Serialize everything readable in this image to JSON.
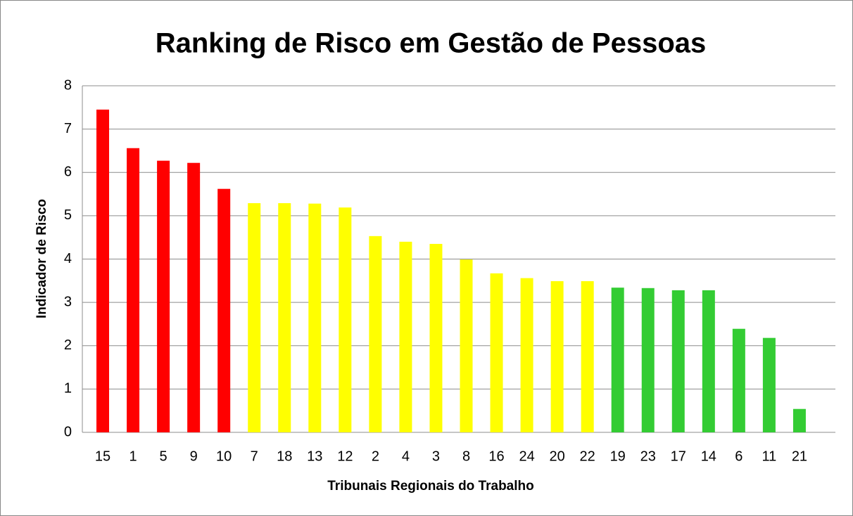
{
  "chart_data": {
    "type": "bar",
    "title": "Ranking de Risco em Gestão de Pessoas",
    "x_label": "Tribunais Regionais do Trabalho",
    "y_label": "Indicador de Risco",
    "categories": [
      "15",
      "1",
      "5",
      "9",
      "10",
      "7",
      "18",
      "13",
      "12",
      "2",
      "4",
      "3",
      "8",
      "16",
      "24",
      "20",
      "22",
      "19",
      "23",
      "17",
      "14",
      "6",
      "11",
      "21"
    ],
    "values": [
      7.45,
      6.56,
      6.27,
      6.22,
      5.62,
      5.29,
      5.29,
      5.28,
      5.19,
      4.53,
      4.4,
      4.35,
      3.99,
      3.67,
      3.56,
      3.49,
      3.49,
      3.34,
      3.33,
      3.28,
      3.28,
      2.39,
      2.18,
      0.54
    ],
    "colors": [
      "#ff0000",
      "#ff0000",
      "#ff0000",
      "#ff0000",
      "#ff0000",
      "#ffff00",
      "#ffff00",
      "#ffff00",
      "#ffff00",
      "#ffff00",
      "#ffff00",
      "#ffff00",
      "#ffff00",
      "#ffff00",
      "#ffff00",
      "#ffff00",
      "#ffff00",
      "#33cc33",
      "#33cc33",
      "#33cc33",
      "#33cc33",
      "#33cc33",
      "#33cc33",
      "#33cc33"
    ],
    "ylim": [
      0,
      8
    ],
    "yticks": [
      0,
      1,
      2,
      3,
      4,
      5,
      6,
      7,
      8
    ],
    "grid": true
  }
}
